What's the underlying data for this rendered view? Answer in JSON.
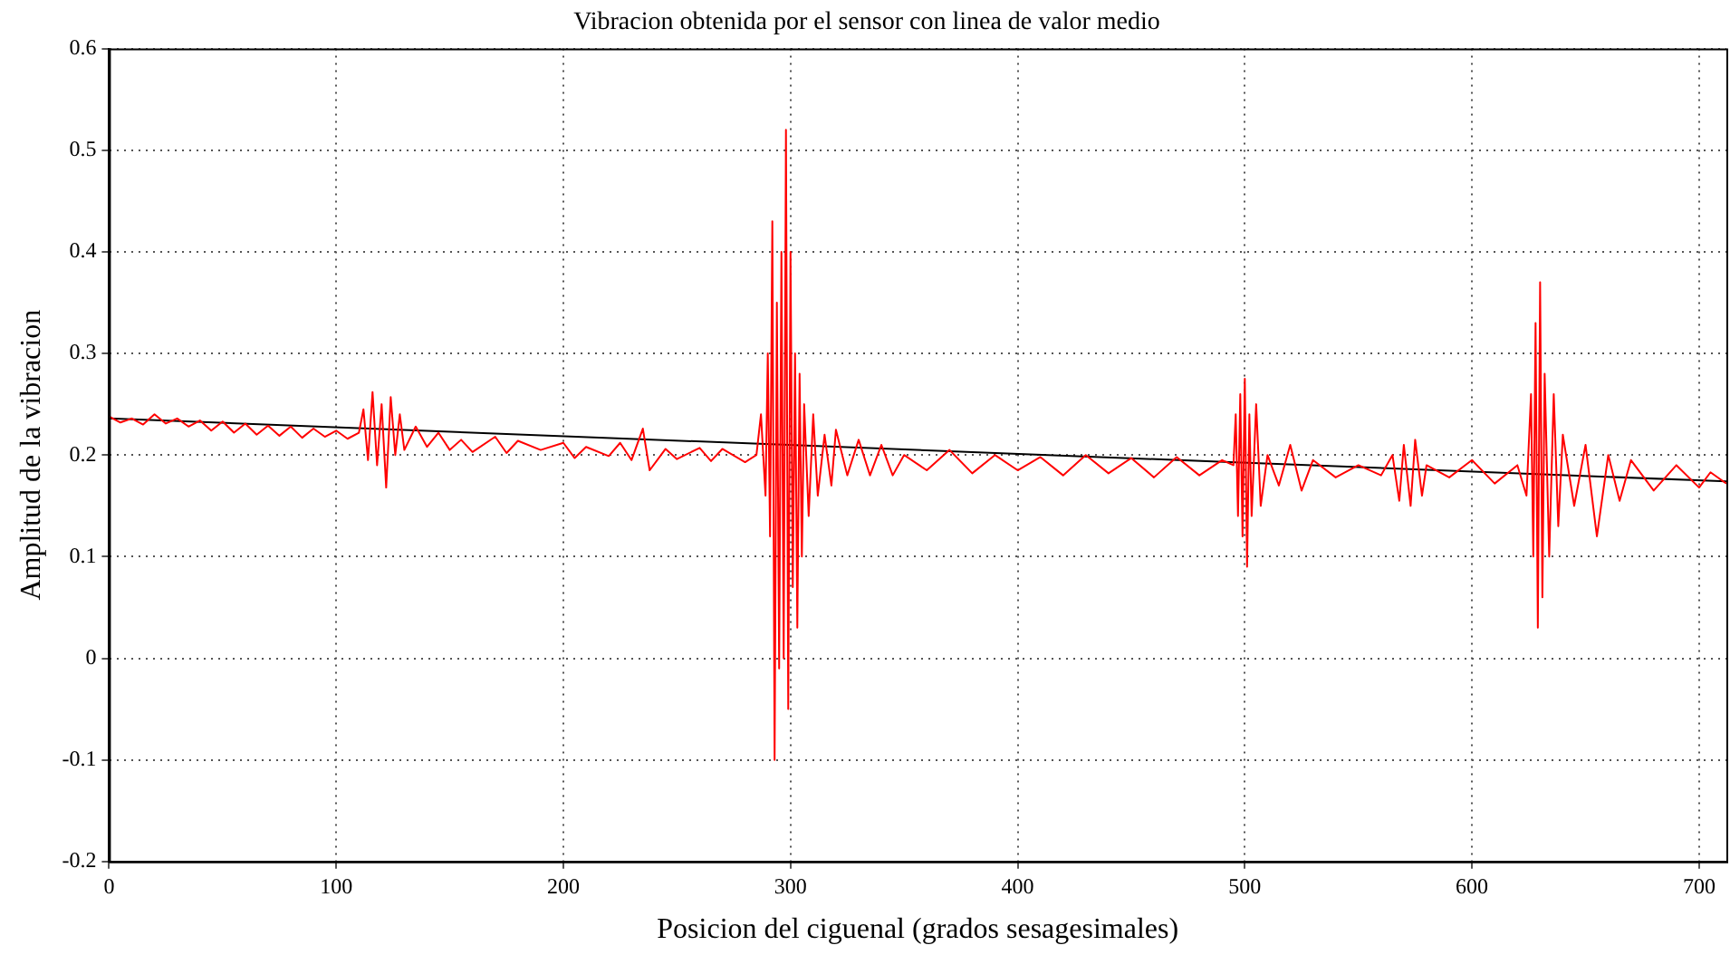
{
  "chart_data": {
    "type": "line",
    "title": "Vibracion obtenida por el sensor con linea de valor medio",
    "xlabel": "Posicion del ciguenal (grados sesagesimales)",
    "ylabel": "Amplitud de la vibracion",
    "xlim": [
      0,
      712
    ],
    "xticks": [
      0,
      100,
      200,
      300,
      400,
      500,
      600,
      700
    ],
    "ylim": [
      -0.2,
      0.6
    ],
    "yticks": [
      -0.2,
      -0.1,
      0,
      0.1,
      0.2,
      0.3,
      0.4,
      0.5,
      0.6
    ],
    "grid": true,
    "legend": false,
    "marker": "none",
    "line_style": "solid",
    "series": [
      {
        "color": "#ff0000",
        "x": [
          0,
          5,
          10,
          15,
          20,
          25,
          30,
          35,
          40,
          45,
          50,
          55,
          60,
          65,
          70,
          75,
          80,
          85,
          90,
          95,
          100,
          105,
          110,
          112,
          114,
          116,
          118,
          120,
          122,
          124,
          126,
          128,
          130,
          135,
          140,
          145,
          150,
          155,
          160,
          170,
          175,
          180,
          190,
          200,
          205,
          210,
          220,
          225,
          230,
          235,
          238,
          245,
          250,
          260,
          265,
          270,
          280,
          285,
          287,
          289,
          290,
          291,
          292,
          293,
          294,
          295,
          296,
          297,
          298,
          299,
          300,
          301,
          302,
          303,
          304,
          305,
          306,
          308,
          310,
          312,
          315,
          318,
          320,
          325,
          330,
          335,
          340,
          345,
          350,
          360,
          370,
          380,
          390,
          400,
          410,
          420,
          430,
          440,
          450,
          460,
          470,
          480,
          490,
          495,
          496,
          497,
          498,
          499,
          500,
          501,
          502,
          503,
          505,
          507,
          510,
          515,
          520,
          525,
          530,
          540,
          550,
          560,
          565,
          568,
          570,
          573,
          575,
          578,
          580,
          590,
          600,
          610,
          620,
          624,
          626,
          627,
          628,
          629,
          630,
          631,
          632,
          634,
          636,
          638,
          640,
          645,
          650,
          655,
          660,
          665,
          670,
          680,
          690,
          700,
          705,
          712
        ],
        "values": [
          0.238,
          0.232,
          0.236,
          0.23,
          0.24,
          0.231,
          0.236,
          0.228,
          0.234,
          0.224,
          0.233,
          0.222,
          0.231,
          0.22,
          0.229,
          0.219,
          0.228,
          0.217,
          0.226,
          0.218,
          0.224,
          0.216,
          0.222,
          0.245,
          0.195,
          0.262,
          0.19,
          0.25,
          0.168,
          0.257,
          0.2,
          0.24,
          0.205,
          0.228,
          0.208,
          0.222,
          0.205,
          0.215,
          0.203,
          0.218,
          0.202,
          0.214,
          0.205,
          0.212,
          0.197,
          0.208,
          0.199,
          0.212,
          0.195,
          0.226,
          0.185,
          0.206,
          0.196,
          0.207,
          0.194,
          0.206,
          0.193,
          0.2,
          0.24,
          0.16,
          0.3,
          0.12,
          0.43,
          -0.1,
          0.35,
          -0.01,
          0.4,
          0,
          0.52,
          -0.05,
          0.4,
          0.07,
          0.3,
          0.03,
          0.28,
          0.1,
          0.25,
          0.14,
          0.24,
          0.16,
          0.22,
          0.17,
          0.225,
          0.18,
          0.215,
          0.18,
          0.21,
          0.18,
          0.2,
          0.185,
          0.205,
          0.182,
          0.2,
          0.185,
          0.198,
          0.18,
          0.2,
          0.182,
          0.197,
          0.178,
          0.198,
          0.18,
          0.195,
          0.19,
          0.24,
          0.14,
          0.26,
          0.12,
          0.275,
          0.09,
          0.24,
          0.14,
          0.25,
          0.15,
          0.2,
          0.17,
          0.21,
          0.165,
          0.195,
          0.178,
          0.19,
          0.18,
          0.2,
          0.155,
          0.21,
          0.15,
          0.215,
          0.16,
          0.19,
          0.178,
          0.195,
          0.172,
          0.19,
          0.16,
          0.26,
          0.1,
          0.33,
          0.03,
          0.37,
          0.06,
          0.28,
          0.1,
          0.26,
          0.13,
          0.22,
          0.15,
          0.21,
          0.12,
          0.2,
          0.155,
          0.195,
          0.165,
          0.19,
          0.168,
          0.183,
          0.172
        ]
      },
      {
        "color": "#000000",
        "x": [
          0,
          712
        ],
        "values": [
          0.236,
          0.174
        ]
      }
    ]
  }
}
